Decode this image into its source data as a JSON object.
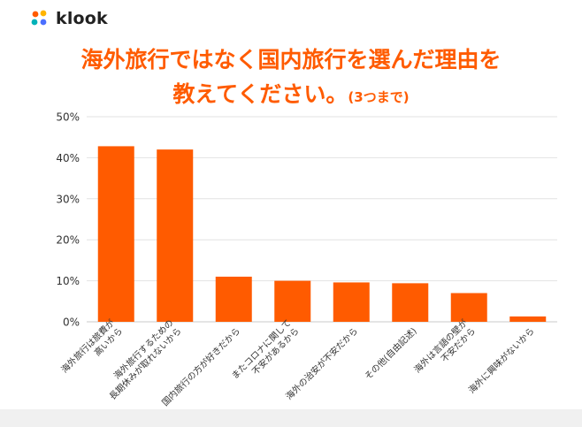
{
  "brand": {
    "logo_text": "klook",
    "accent": "#ff5b00"
  },
  "title_line1": "海外旅行ではなく国内旅行を選んだ理由を",
  "title_line2_main": "教えてください。",
  "title_line2_note": "(3つまで)",
  "chart_data": {
    "type": "bar",
    "title": "海外旅行ではなく国内旅行を選んだ理由を教えてください。(3つまで)",
    "ylabel": "",
    "xlabel": "",
    "ylim": [
      0,
      50
    ],
    "yticks": [
      "0%",
      "10%",
      "20%",
      "30%",
      "40%",
      "50%"
    ],
    "ytick_values": [
      0,
      10,
      20,
      30,
      40,
      50
    ],
    "grid": true,
    "bar_color": "#ff5b00",
    "categories": [
      [
        "海外旅行は旅費が",
        "高いから"
      ],
      [
        "海外旅行するための",
        "長期休みが取れないから"
      ],
      [
        "国内旅行の方が好きだから"
      ],
      [
        "またコロナに関して",
        "不安があるから"
      ],
      [
        "海外の治安が不安だから"
      ],
      [
        "その他(自由記述)"
      ],
      [
        "海外は言語の壁が",
        "不安だから"
      ],
      [
        "海外に興味がないから"
      ]
    ],
    "values": [
      42.8,
      42.0,
      11.0,
      10.0,
      9.6,
      9.4,
      7.0,
      1.3
    ]
  }
}
